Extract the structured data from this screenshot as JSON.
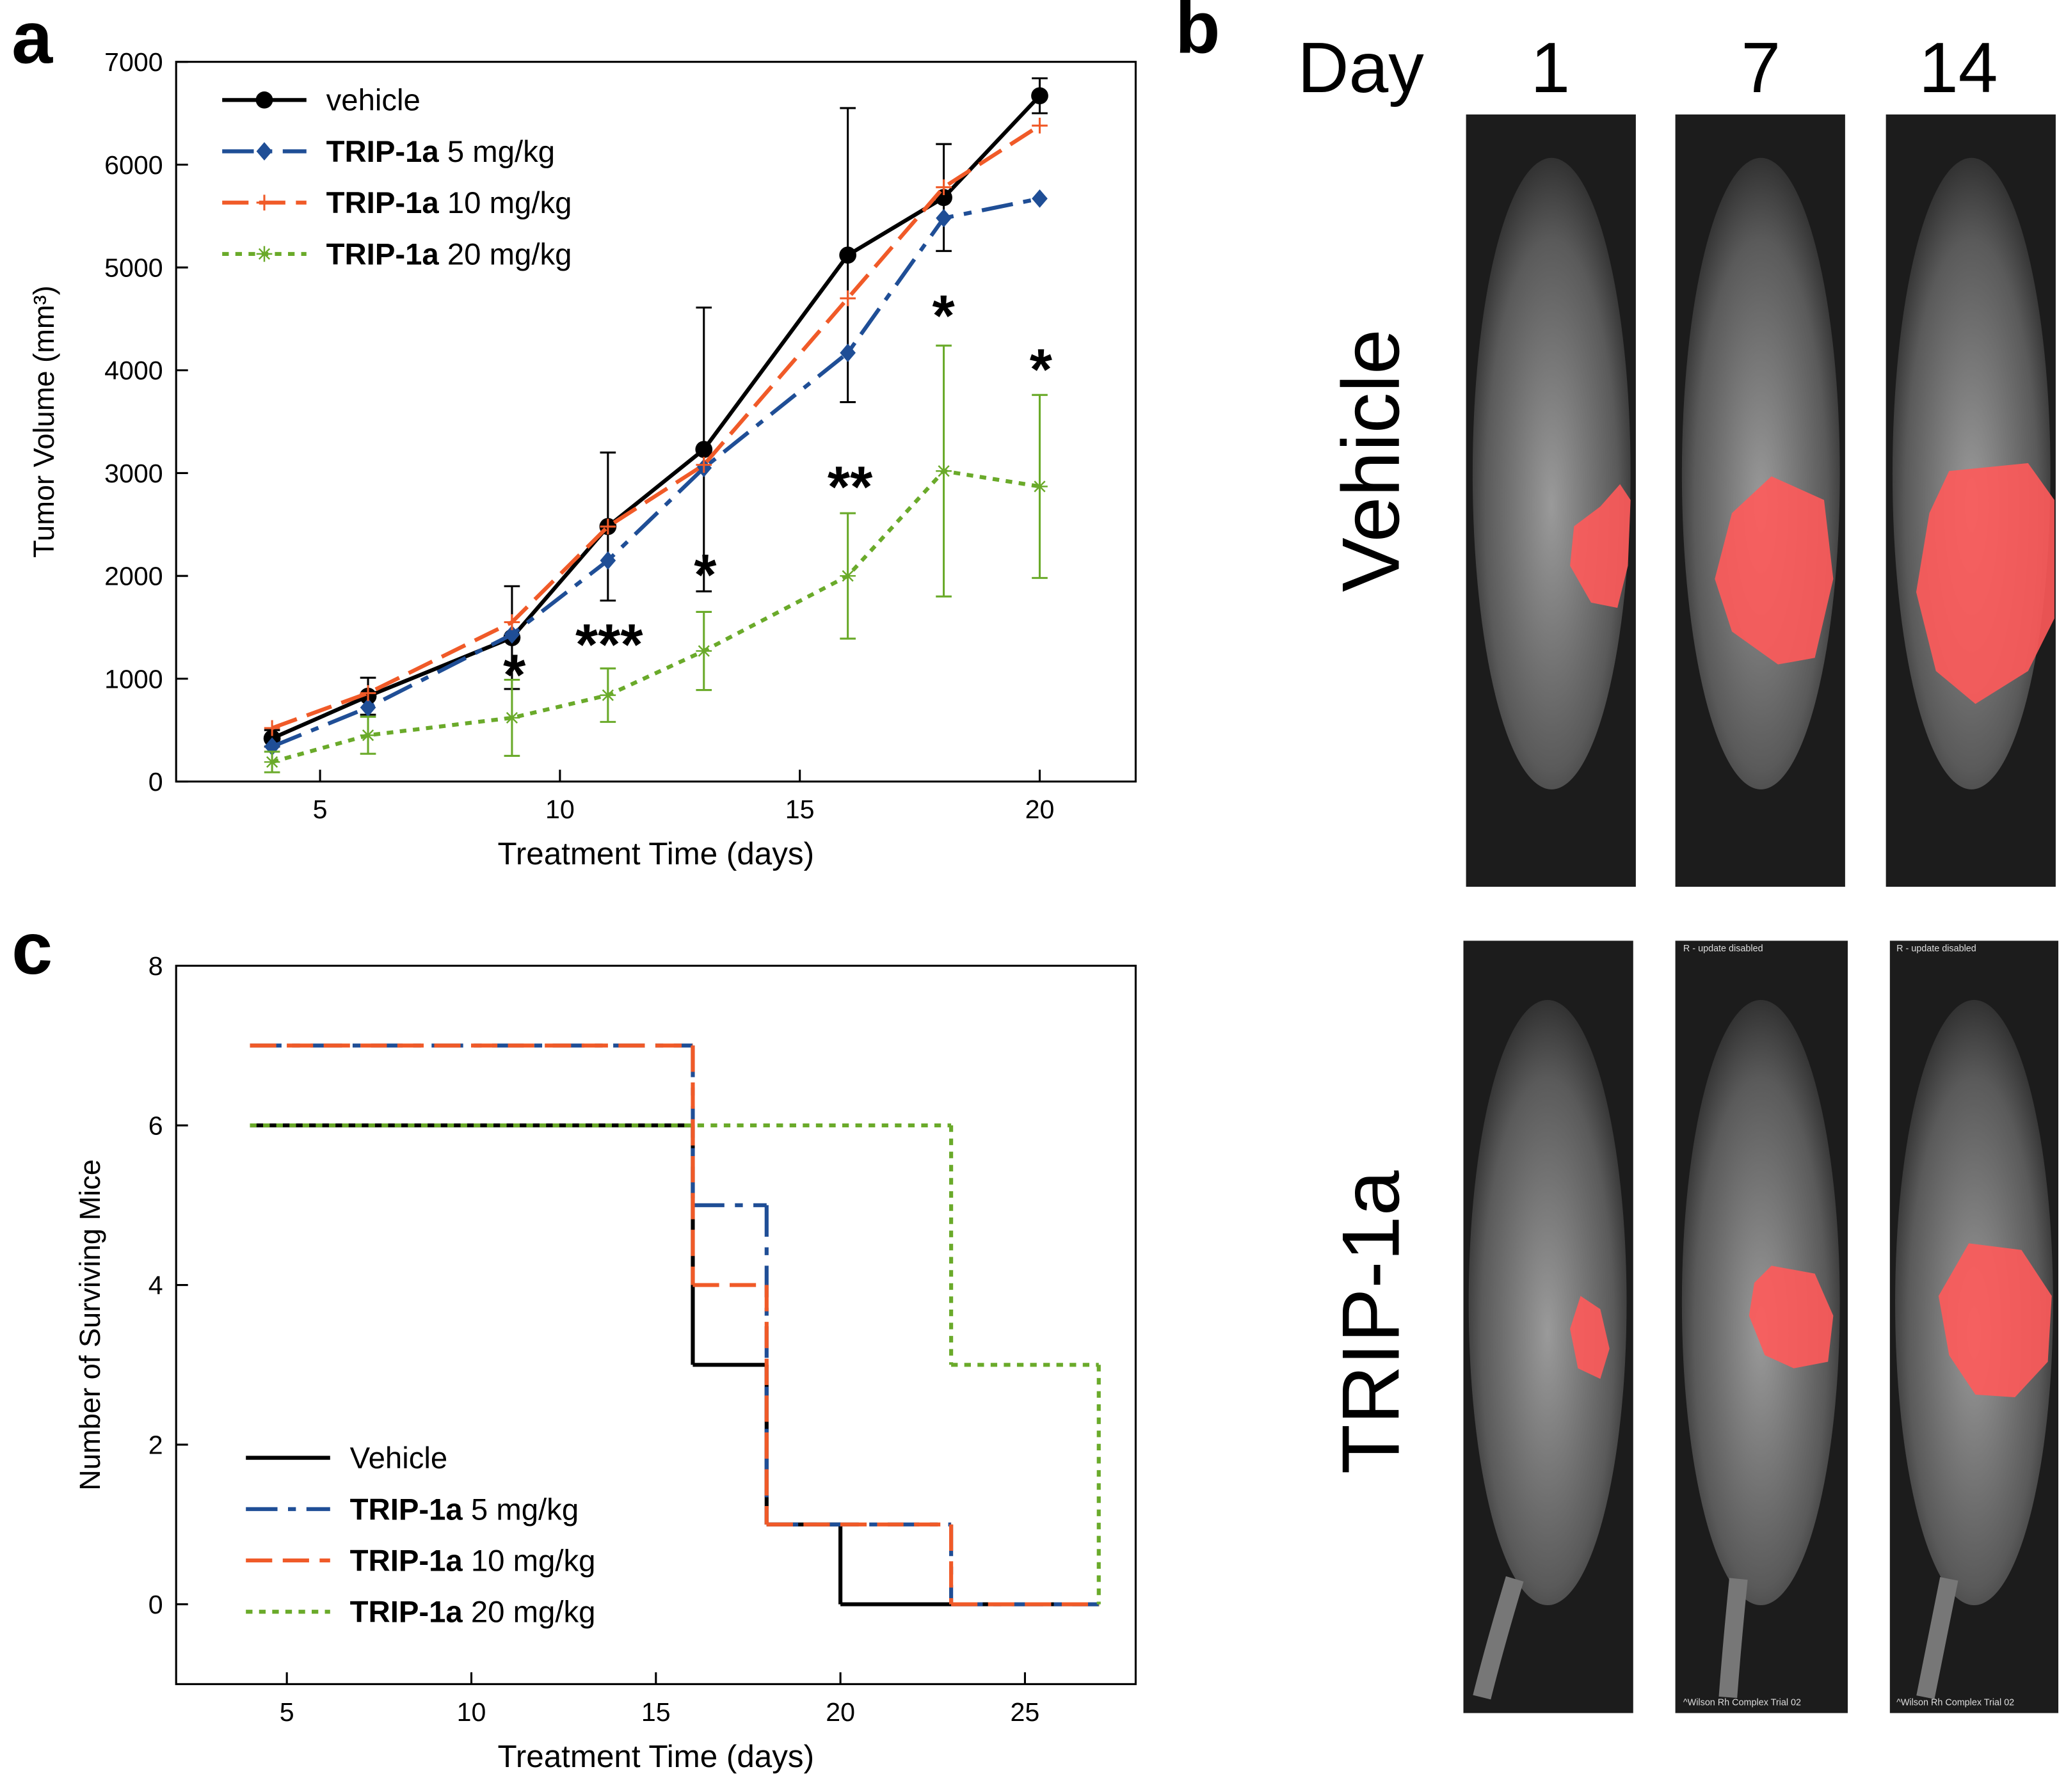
{
  "panel_labels": [
    "a",
    "b",
    "c"
  ],
  "chart_data": [
    {
      "type": "line",
      "x_label": "Treatment Time (days)",
      "y_label": "Tumor Volume (mm³)",
      "xlim": [
        2,
        22
      ],
      "xticks": [
        5,
        10,
        15,
        20
      ],
      "ylim": [
        0,
        7000
      ],
      "yticks": [
        0,
        1000,
        2000,
        3000,
        4000,
        5000,
        6000,
        7000
      ],
      "legend": "upper left",
      "series": [
        {
          "name": "vehicle",
          "color": "#000000",
          "dash": "solid",
          "marker": "circle",
          "x": [
            4,
            6,
            9,
            11,
            13,
            16,
            18,
            20
          ],
          "values": [
            420,
            830,
            1400,
            2480,
            3230,
            5120,
            5680,
            6670
          ],
          "errors": [
            80,
            180,
            500,
            720,
            1380,
            1430,
            520,
            170
          ]
        },
        {
          "name": "TRIP-1a 5 mg/kg",
          "color": "#1f4e96",
          "dash": "dashdot",
          "marker": "diamond",
          "x": [
            4,
            6,
            9,
            11,
            13,
            16,
            18,
            20
          ],
          "values": [
            340,
            720,
            1430,
            2150,
            3050,
            4170,
            5480,
            5670
          ]
        },
        {
          "name": "TRIP-1a 10 mg/kg",
          "color": "#f05a28",
          "dash": "dashed",
          "marker": "plus",
          "x": [
            4,
            6,
            9,
            11,
            13,
            16,
            18,
            20
          ],
          "values": [
            520,
            860,
            1550,
            2480,
            3080,
            4700,
            5780,
            6380
          ]
        },
        {
          "name": "TRIP-1a 20 mg/kg",
          "color": "#6aaa2a",
          "dash": "dotted",
          "marker": "star",
          "x": [
            4,
            6,
            9,
            11,
            13,
            16,
            18,
            20
          ],
          "values": [
            190,
            450,
            620,
            840,
            1270,
            2000,
            3020,
            2870
          ],
          "errors": [
            100,
            180,
            370,
            260,
            380,
            610,
            1220,
            890
          ]
        }
      ],
      "annotations": [
        "*",
        "***",
        "*",
        "**",
        "*",
        "*"
      ]
    },
    {
      "type": "step",
      "x_label": "Treatment Time (days)",
      "y_label": "Number of Surviving Mice",
      "xlim": [
        2,
        28
      ],
      "xticks": [
        5,
        10,
        15,
        20,
        25
      ],
      "ylim": [
        -1,
        8
      ],
      "yticks": [
        0,
        2,
        4,
        6,
        8
      ],
      "legend": "lower left",
      "series": [
        {
          "name": "Vehicle",
          "color": "#000000",
          "dash": "solid",
          "x": [
            4,
            16,
            18,
            20,
            27
          ],
          "values": [
            6,
            3,
            1,
            0,
            0
          ]
        },
        {
          "name": "TRIP-1a 5 mg/kg",
          "color": "#1f4e96",
          "dash": "dashdot",
          "x": [
            4,
            16,
            18,
            23,
            27
          ],
          "values": [
            7,
            5,
            1,
            0,
            0
          ]
        },
        {
          "name": "TRIP-1a 10 mg/kg",
          "color": "#f05a28",
          "dash": "dashed",
          "x": [
            4,
            16,
            18,
            23,
            27
          ],
          "values": [
            7,
            4,
            1,
            0,
            0
          ]
        },
        {
          "name": "TRIP-1a 20 mg/kg",
          "color": "#6aaa2a",
          "dash": "dotted",
          "x": [
            4,
            23,
            27
          ],
          "values": [
            6,
            3,
            0
          ]
        }
      ]
    }
  ],
  "panel_b": {
    "day_label": "Day",
    "days": [
      "1",
      "7",
      "14"
    ],
    "rows": [
      "Vehicle",
      "TRIP-1a"
    ],
    "overlay_top": "R - update disabled",
    "overlay_bottom": "^Wilson Rh Complex Trial 02"
  }
}
